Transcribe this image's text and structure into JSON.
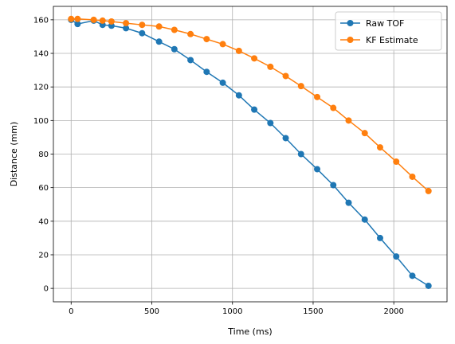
{
  "chart_data": {
    "type": "line",
    "title": "",
    "xlabel": "Time (ms)",
    "ylabel": "Distance (mm)",
    "xlim": [
      -110,
      2330
    ],
    "ylim": [
      -8,
      168
    ],
    "xticks": [
      0,
      500,
      1000,
      1500,
      2000
    ],
    "yticks": [
      0,
      20,
      40,
      60,
      80,
      100,
      120,
      140,
      160
    ],
    "grid": true,
    "legend_position": "top-right",
    "series": [
      {
        "name": "Raw TOF",
        "color": "#1f77b4",
        "marker": "circle",
        "x": [
          0,
          40,
          140,
          195,
          250,
          340,
          440,
          545,
          640,
          740,
          840,
          940,
          1040,
          1135,
          1235,
          1330,
          1425,
          1525,
          1625,
          1720,
          1820,
          1915,
          2015,
          2115,
          2215
        ],
        "y": [
          160,
          157.5,
          159.5,
          157,
          156.5,
          155,
          152,
          147,
          142.5,
          136,
          129,
          122.5,
          115,
          106.5,
          98.5,
          89.5,
          80,
          71,
          61.5,
          51,
          41,
          30,
          19,
          7.5,
          1.5
        ]
      },
      {
        "name": "KF Estimate",
        "color": "#ff7f0e",
        "marker": "circle",
        "x": [
          0,
          40,
          140,
          195,
          250,
          340,
          440,
          545,
          640,
          740,
          840,
          940,
          1040,
          1135,
          1235,
          1330,
          1425,
          1525,
          1625,
          1720,
          1820,
          1915,
          2015,
          2115,
          2215
        ],
        "y": [
          160.5,
          160.5,
          160,
          159.5,
          159,
          158,
          157,
          156,
          154,
          151.5,
          148.5,
          145.5,
          141.5,
          137,
          132,
          126.5,
          120.5,
          114,
          107.5,
          100,
          92.5,
          84,
          75.5,
          66.5,
          58
        ]
      }
    ]
  }
}
